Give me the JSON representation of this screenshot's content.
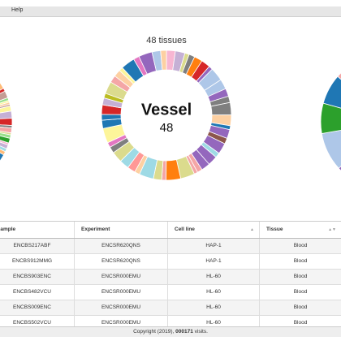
{
  "menu": {
    "items": [
      "Help"
    ]
  },
  "chart": {
    "title": "48 tissues",
    "center_label": "Vessel",
    "center_value": "48"
  },
  "table": {
    "columns": [
      "Sample",
      "Experiment",
      "Cell line",
      "Tissue"
    ],
    "rows": [
      [
        "ENCBS217ABF",
        "ENCSR620QNS",
        "HAP-1",
        "Blood"
      ],
      [
        "ENCBS912MMG",
        "ENCSR620QNS",
        "HAP-1",
        "Blood"
      ],
      [
        "ENCBS903ENC",
        "ENCSR000EMU",
        "HL-60",
        "Blood"
      ],
      [
        "ENCBS482VCU",
        "ENCSR000EMU",
        "HL-60",
        "Blood"
      ],
      [
        "ENCBS009ENC",
        "ENCSR000EMU",
        "HL-60",
        "Blood"
      ],
      [
        "ENCBS502VCU",
        "ENCSR000EMU",
        "HL-60",
        "Blood"
      ]
    ]
  },
  "footer": {
    "copyright": "Copyright (2019),",
    "visits": "000171",
    "suffix": "visits."
  }
}
